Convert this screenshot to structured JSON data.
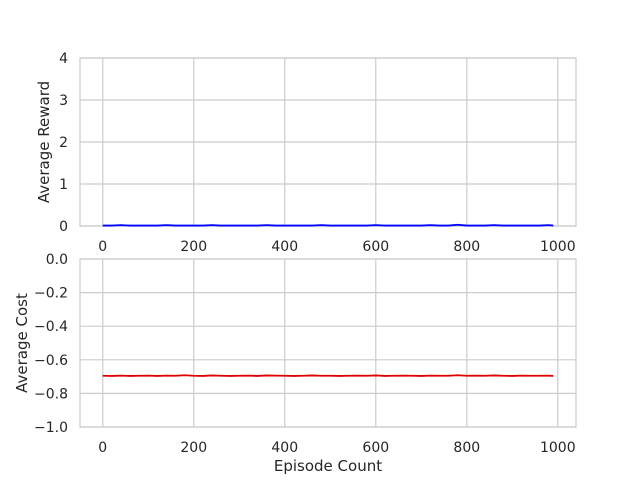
{
  "chart_data": [
    {
      "type": "line",
      "title": "",
      "xlabel": "",
      "ylabel": "Average Reward",
      "xlim": [
        -50,
        1040
      ],
      "ylim": [
        0,
        4
      ],
      "xticks": [
        0,
        200,
        400,
        600,
        800,
        1000
      ],
      "yticks": [
        0,
        1,
        2,
        3,
        4
      ],
      "x_tick_labels": [
        "0",
        "200",
        "400",
        "600",
        "800",
        "1000"
      ],
      "y_tick_labels": [
        "0",
        "1",
        "2",
        "3",
        "4"
      ],
      "grid": true,
      "legend": "none",
      "series": [
        {
          "color": "#0000ff",
          "x": [
            0,
            20,
            40,
            60,
            80,
            100,
            120,
            140,
            160,
            180,
            200,
            220,
            240,
            260,
            280,
            300,
            320,
            340,
            360,
            380,
            400,
            420,
            440,
            460,
            480,
            500,
            520,
            540,
            560,
            580,
            600,
            620,
            640,
            660,
            680,
            700,
            720,
            740,
            760,
            780,
            800,
            820,
            840,
            860,
            880,
            900,
            920,
            940,
            960,
            980,
            990
          ],
          "values": [
            0.01,
            0.01,
            0.02,
            0.01,
            0.01,
            0.01,
            0.01,
            0.02,
            0.01,
            0.01,
            0.01,
            0.01,
            0.02,
            0.01,
            0.01,
            0.01,
            0.01,
            0.01,
            0.02,
            0.01,
            0.01,
            0.01,
            0.01,
            0.01,
            0.02,
            0.01,
            0.01,
            0.01,
            0.01,
            0.01,
            0.02,
            0.01,
            0.01,
            0.01,
            0.01,
            0.01,
            0.02,
            0.01,
            0.01,
            0.03,
            0.01,
            0.01,
            0.01,
            0.02,
            0.01,
            0.01,
            0.01,
            0.01,
            0.01,
            0.02,
            0.01
          ]
        }
      ]
    },
    {
      "type": "line",
      "title": "",
      "xlabel": "Episode Count",
      "ylabel": "Average Cost",
      "xlim": [
        -50,
        1040
      ],
      "ylim": [
        -1.0,
        0.0
      ],
      "xticks": [
        0,
        200,
        400,
        600,
        800,
        1000
      ],
      "yticks": [
        0.0,
        -0.2,
        -0.4,
        -0.6,
        -0.8,
        -1.0
      ],
      "x_tick_labels": [
        "0",
        "200",
        "400",
        "600",
        "800",
        "1000"
      ],
      "y_tick_labels": [
        "0.0",
        "−0.2",
        "−0.4",
        "−0.6",
        "−0.8",
        "−1.0"
      ],
      "grid": true,
      "legend": "none",
      "series": [
        {
          "color": "#dd0000",
          "x": [
            0,
            20,
            40,
            60,
            80,
            100,
            120,
            140,
            160,
            180,
            200,
            220,
            240,
            260,
            280,
            300,
            320,
            340,
            360,
            380,
            400,
            420,
            440,
            460,
            480,
            500,
            520,
            540,
            560,
            580,
            600,
            620,
            640,
            660,
            680,
            700,
            720,
            740,
            760,
            780,
            800,
            820,
            840,
            860,
            880,
            900,
            920,
            940,
            960,
            980,
            990
          ],
          "values": [
            -0.695,
            -0.696,
            -0.694,
            -0.696,
            -0.695,
            -0.694,
            -0.696,
            -0.694,
            -0.695,
            -0.692,
            -0.695,
            -0.696,
            -0.693,
            -0.695,
            -0.696,
            -0.695,
            -0.694,
            -0.696,
            -0.693,
            -0.694,
            -0.695,
            -0.696,
            -0.695,
            -0.693,
            -0.695,
            -0.695,
            -0.696,
            -0.695,
            -0.694,
            -0.695,
            -0.693,
            -0.696,
            -0.695,
            -0.694,
            -0.695,
            -0.696,
            -0.694,
            -0.695,
            -0.695,
            -0.692,
            -0.695,
            -0.694,
            -0.695,
            -0.693,
            -0.695,
            -0.696,
            -0.694,
            -0.695,
            -0.695,
            -0.694,
            -0.696
          ]
        }
      ]
    }
  ]
}
